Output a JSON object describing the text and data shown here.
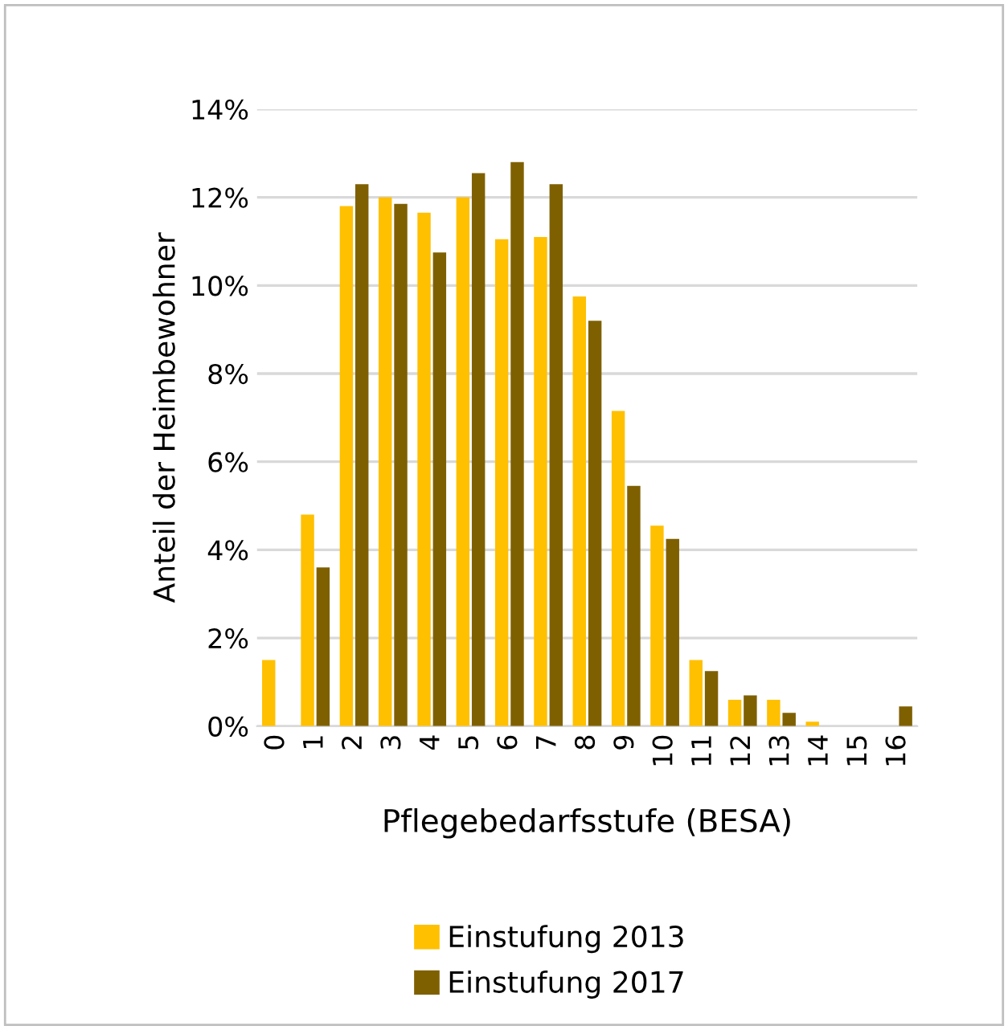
{
  "chart_data": {
    "type": "bar",
    "xlabel": "Pflegebedarfsstufe (BESA)",
    "ylabel": "Anteil der Heimbewohner",
    "categories": [
      "0",
      "1",
      "2",
      "3",
      "4",
      "5",
      "6",
      "7",
      "8",
      "9",
      "10",
      "11",
      "12",
      "13",
      "14",
      "15",
      "16"
    ],
    "series": [
      {
        "name": "Einstufung 2013",
        "color": "#ffc000",
        "values": [
          1.5,
          4.8,
          11.8,
          12.0,
          11.65,
          12.0,
          11.05,
          11.1,
          9.75,
          7.15,
          4.55,
          1.5,
          0.6,
          0.6,
          0.1,
          0,
          0
        ]
      },
      {
        "name": "Einstufung 2017",
        "color": "#7f6000",
        "values": [
          0,
          3.6,
          12.3,
          11.85,
          10.75,
          12.55,
          12.8,
          12.3,
          9.2,
          5.45,
          4.25,
          1.25,
          0.7,
          0.3,
          0,
          0,
          0.45
        ]
      }
    ],
    "ylim": [
      0,
      14
    ],
    "yticks": [
      {
        "value": 0,
        "label": "0%"
      },
      {
        "value": 2,
        "label": "2%"
      },
      {
        "value": 4,
        "label": "4%"
      },
      {
        "value": 6,
        "label": "6%"
      },
      {
        "value": 8,
        "label": "8%"
      },
      {
        "value": 10,
        "label": "10%"
      },
      {
        "value": 12,
        "label": "12%"
      },
      {
        "value": 14,
        "label": "14%"
      }
    ],
    "grid": "y",
    "legend": "bottom"
  }
}
